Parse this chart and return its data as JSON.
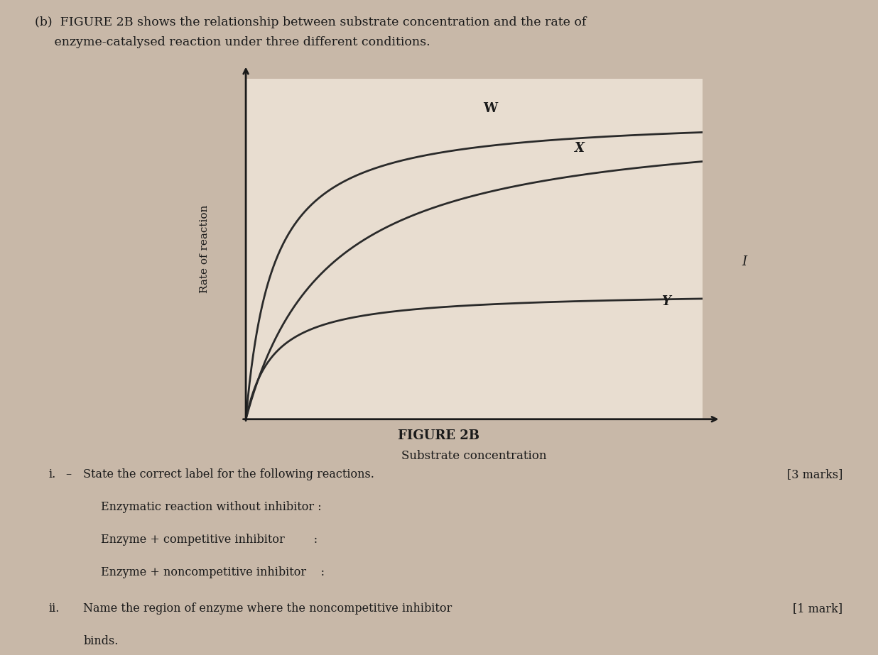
{
  "background_color": "#c8b8a8",
  "page_background": "#c8b8a8",
  "plot_background": "#e8ddd0",
  "title_text": "FIGURE 2B",
  "title_fontsize": 13,
  "xlabel": "Substrate concentration",
  "ylabel": "Rate of reaction",
  "curve_W_label": "W",
  "curve_X_label": "X",
  "curve_Y_label": "Y",
  "curve_color": "#2a2a2a",
  "curve_linewidth": 2.0,
  "header_line1": "(b)  FIGURE 2B shows the relationship between substrate concentration and the rate of",
  "header_line2": "     enzyme-catalysed reaction under three different conditions.",
  "question_i_num": "i.",
  "question_i_dash": "–",
  "question_i_text": "State the correct label for the following reactions.",
  "question_i_marks": "[3 marks]",
  "q_i_line1": "Enzymatic reaction without inhibitor :",
  "q_i_line2": "Enzyme + competitive inhibitor        :",
  "q_i_line3": "Enzyme + noncompetitive inhibitor    :",
  "question_ii_num": "ii.",
  "question_ii_text": "Name the region of enzyme where the noncompetitive inhibitor",
  "question_ii_line2": "binds.",
  "question_ii_marks": "[1 mark]",
  "text_color": "#1a1a1a",
  "axis_color": "#1a1a1a",
  "label_I_text": "I"
}
